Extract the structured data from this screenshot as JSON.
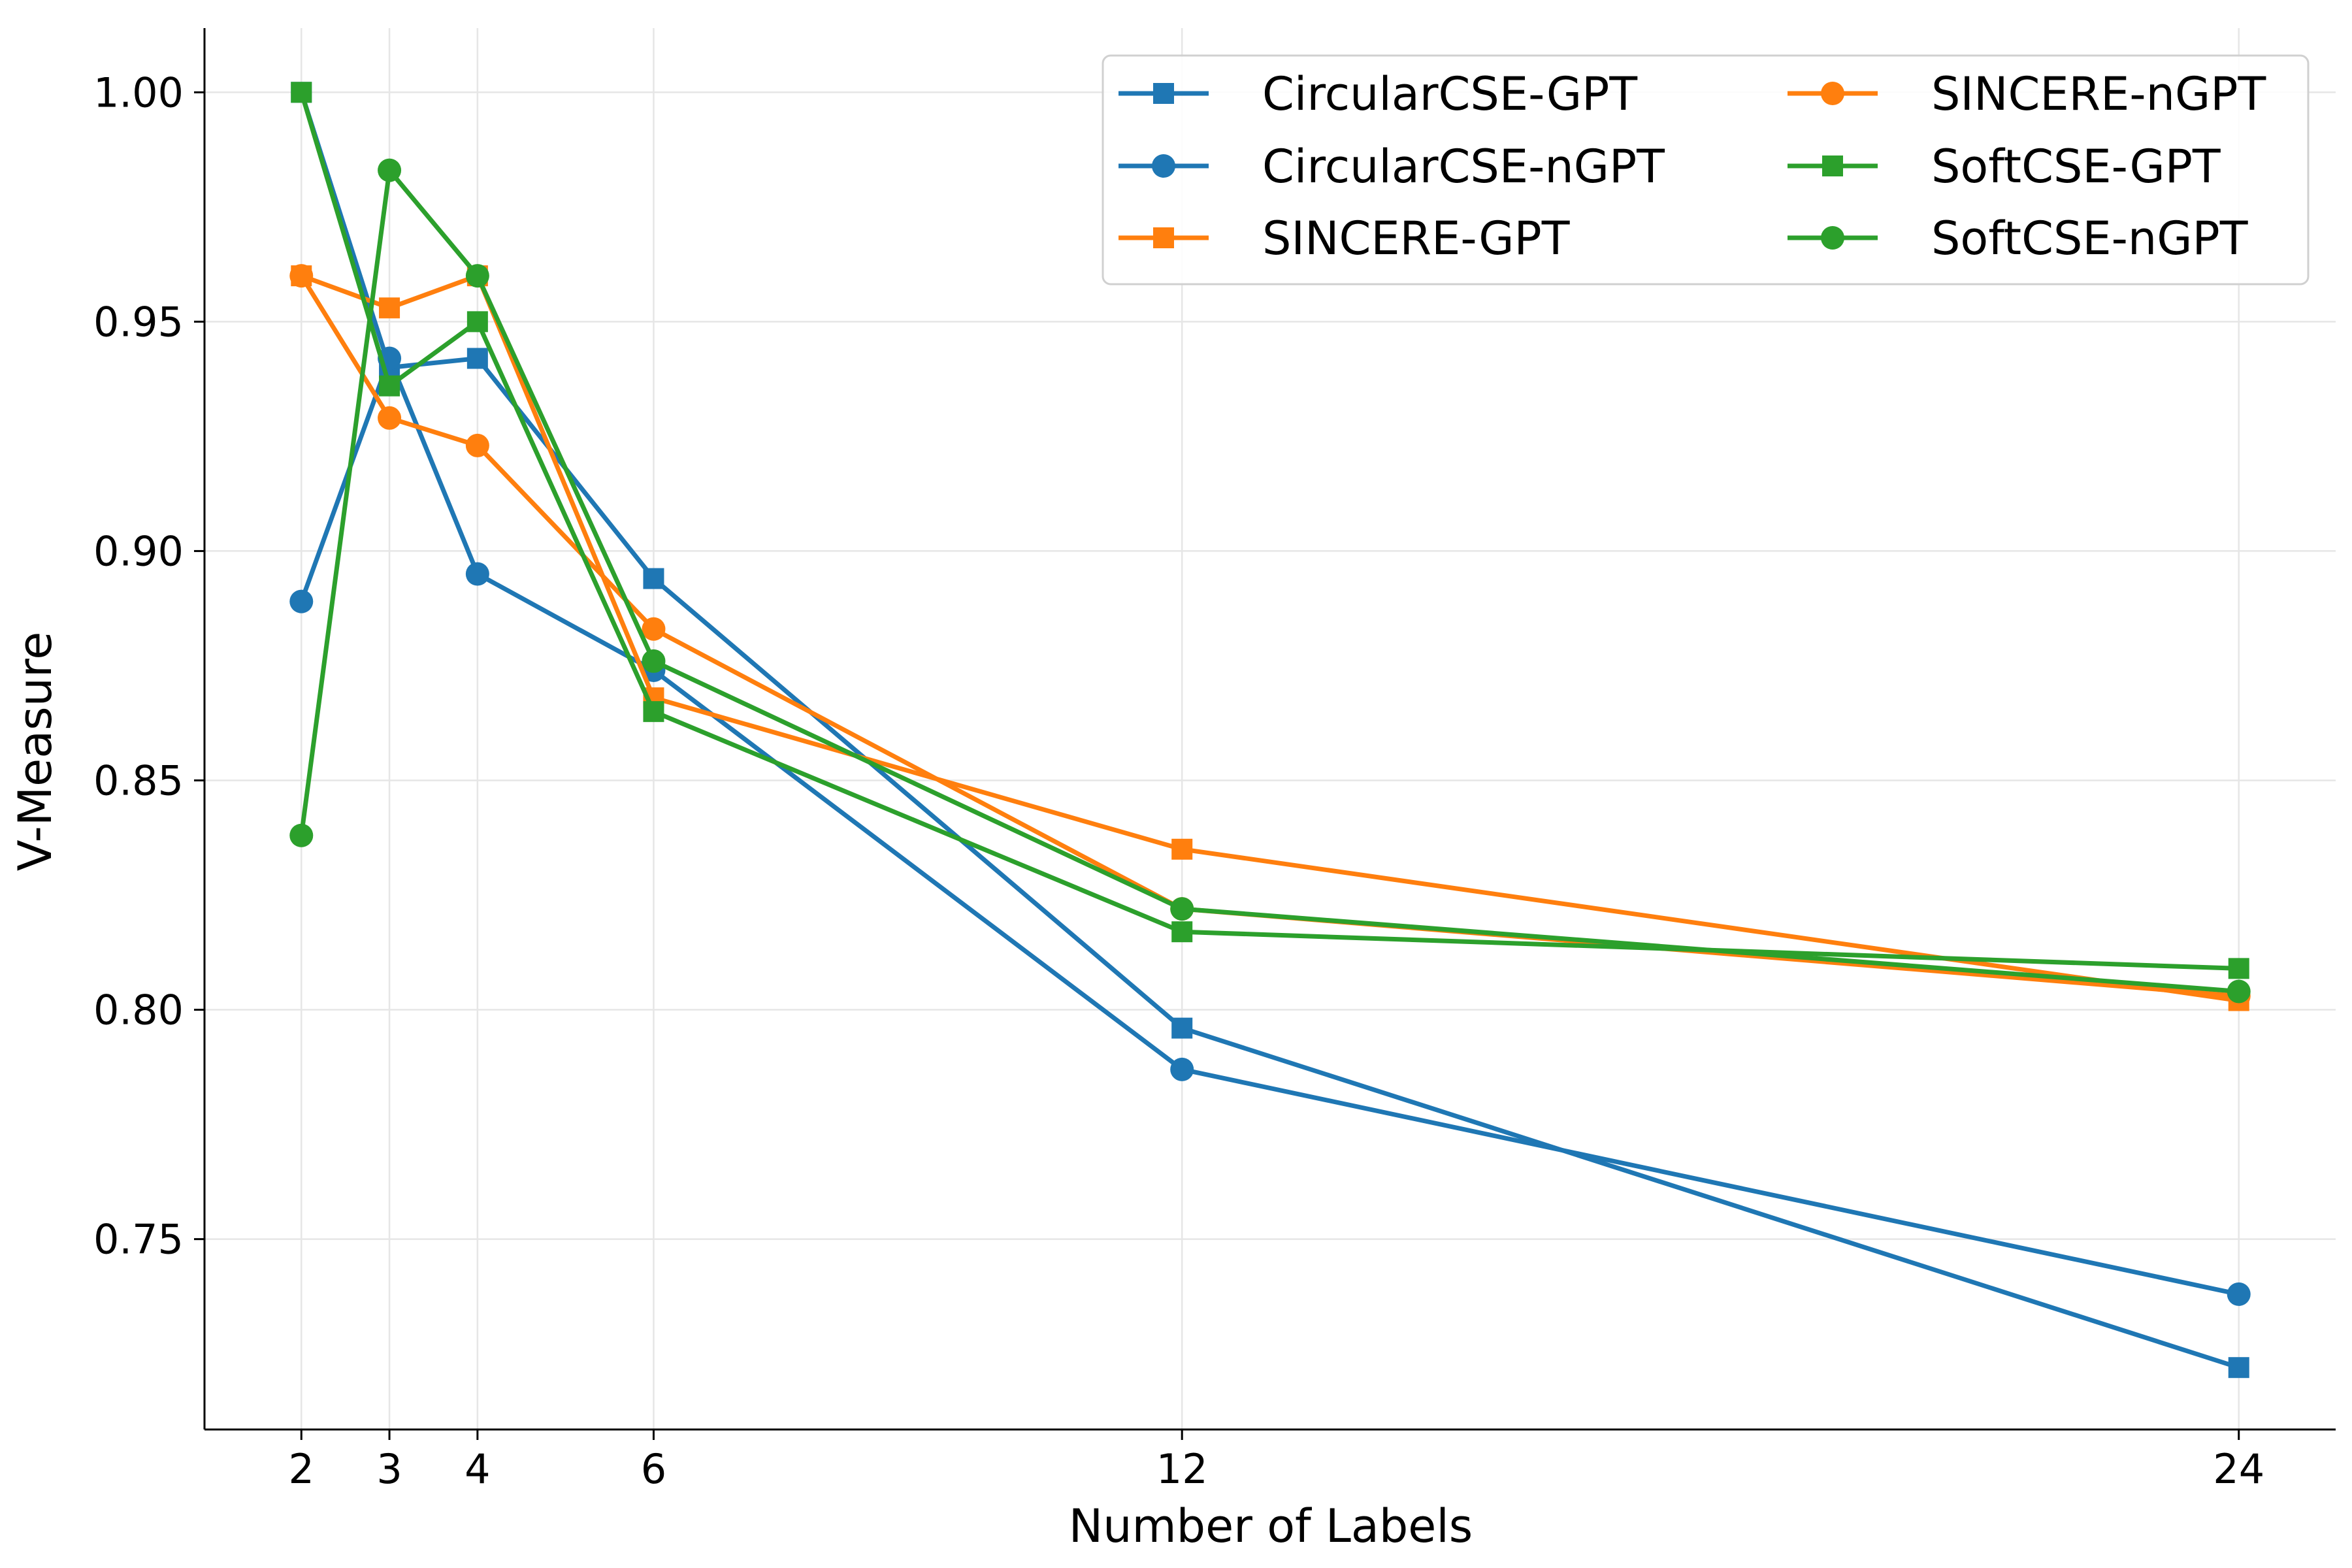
{
  "chart_data": {
    "type": "line",
    "title": "",
    "xlabel": "Number of Labels",
    "ylabel": "V-Measure",
    "x": [
      2,
      3,
      4,
      6,
      12,
      24
    ],
    "x_ticks": [
      "2",
      "3",
      "4",
      "6",
      "12",
      "24"
    ],
    "y_ticks": [
      "0.75",
      "0.80",
      "0.85",
      "0.90",
      "0.95",
      "1.00"
    ],
    "xlim": [
      0.9,
      25.1
    ],
    "ylim": [
      0.7085,
      1.014
    ],
    "grid": true,
    "legend_position": "top-right",
    "series": [
      {
        "name": "CircularCSE-GPT",
        "color": "#1f77b4",
        "marker": "square",
        "values": [
          1.0,
          0.94,
          0.942,
          0.894,
          0.796,
          0.722
        ]
      },
      {
        "name": "CircularCSE-nGPT",
        "color": "#1f77b4",
        "marker": "circle",
        "values": [
          0.889,
          0.942,
          0.895,
          0.874,
          0.787,
          0.738
        ]
      },
      {
        "name": "SINCERE-GPT",
        "color": "#ff7f0e",
        "marker": "square",
        "values": [
          0.96,
          0.953,
          0.96,
          0.868,
          0.835,
          0.802
        ]
      },
      {
        "name": "SINCERE-nGPT",
        "color": "#ff7f0e",
        "marker": "circle",
        "values": [
          0.96,
          0.929,
          0.923,
          0.883,
          0.822,
          0.803
        ]
      },
      {
        "name": "SoftCSE-GPT",
        "color": "#2ca02c",
        "marker": "square",
        "values": [
          1.0,
          0.936,
          0.95,
          0.865,
          0.817,
          0.809
        ]
      },
      {
        "name": "SoftCSE-nGPT",
        "color": "#2ca02c",
        "marker": "circle",
        "values": [
          0.838,
          0.983,
          0.96,
          0.876,
          0.822,
          0.804
        ]
      }
    ]
  }
}
